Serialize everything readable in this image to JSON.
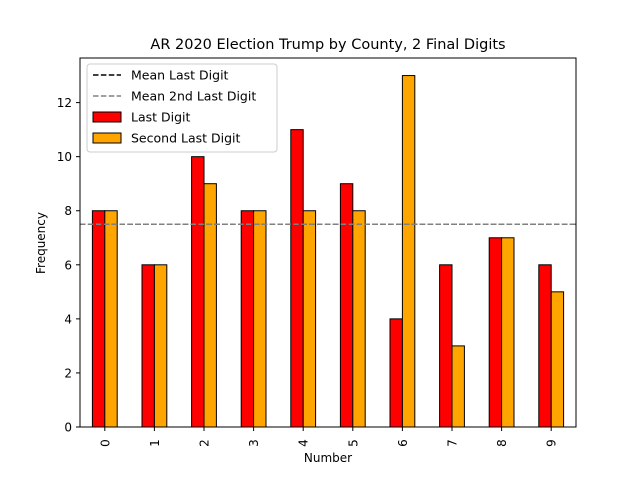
{
  "chart_data": {
    "type": "bar",
    "title": "AR 2020 Election Trump by County, 2 Final Digits",
    "xlabel": "Number",
    "ylabel": "Frequency",
    "categories": [
      "0",
      "1",
      "2",
      "3",
      "4",
      "5",
      "6",
      "7",
      "8",
      "9"
    ],
    "series": [
      {
        "name": "Last Digit",
        "color": "#ff0000",
        "values": [
          8,
          6,
          10,
          8,
          11,
          9,
          4,
          6,
          7,
          6
        ]
      },
      {
        "name": "Second Last Digit",
        "color": "#ffa500",
        "values": [
          8,
          6,
          9,
          8,
          8,
          8,
          13,
          3,
          7,
          5
        ]
      }
    ],
    "reference_lines": [
      {
        "name": "Mean Last Digit",
        "value": 7.5,
        "color": "#000000",
        "style": "dashed"
      },
      {
        "name": "Mean 2nd Last Digit",
        "value": 7.5,
        "color": "#808080",
        "style": "dashed"
      }
    ],
    "ylim": [
      0,
      13.65
    ],
    "yticks": [
      0,
      2,
      4,
      6,
      8,
      10,
      12
    ],
    "xtick_rotation": 90,
    "grid": false,
    "legend_position": "top-left"
  }
}
